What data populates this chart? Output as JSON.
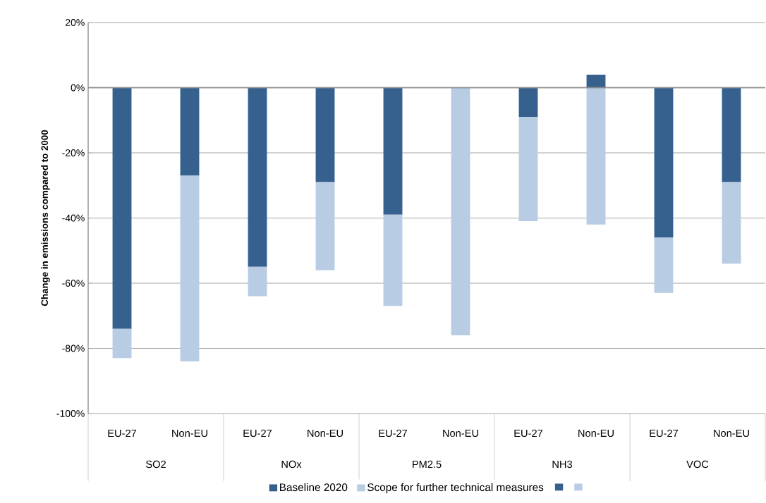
{
  "chart_data": {
    "type": "bar",
    "stacked": true,
    "ylabel": "Change in emissions compared to 2000",
    "categories": [
      "EU-27",
      "Non-EU",
      "EU-27",
      "Non-EU",
      "EU-27",
      "Non-EU",
      "EU-27",
      "Non-EU",
      "EU-27",
      "Non-EU"
    ],
    "annotations": [
      "SO2",
      "NOx",
      "PM2.5",
      "NH3",
      "VOC"
    ],
    "series": [
      {
        "name": "Baseline 2020",
        "color": "#36618f",
        "values": [
          -74,
          null,
          -55,
          null,
          -39,
          null,
          -9,
          null,
          -46,
          null
        ]
      },
      {
        "name": "Scope for further technical measures",
        "color": "#b8cce4",
        "values": [
          -9,
          null,
          -9,
          null,
          -28,
          null,
          -32,
          null,
          -17,
          null
        ]
      },
      {
        "color": "#36618f",
        "values": [
          null,
          -27,
          null,
          -29,
          null,
          null,
          null,
          4,
          null,
          -29
        ]
      },
      {
        "color": "#b8cce4",
        "values": [
          null,
          -57,
          null,
          -27,
          null,
          -76,
          null,
          -42,
          null,
          -25
        ]
      }
    ],
    "ylim": [
      -100,
      20
    ],
    "yticks": [
      {
        "value": -100,
        "label": "-100%"
      },
      {
        "value": -80,
        "label": "-80%"
      },
      {
        "value": -60,
        "label": "-60%"
      },
      {
        "value": -40,
        "label": "-40%"
      },
      {
        "value": -20,
        "label": "-20%"
      },
      {
        "value": 0,
        "label": "0%"
      },
      {
        "value": 20,
        "label": "20%"
      }
    ],
    "grid": "y",
    "legend": "bottom"
  }
}
